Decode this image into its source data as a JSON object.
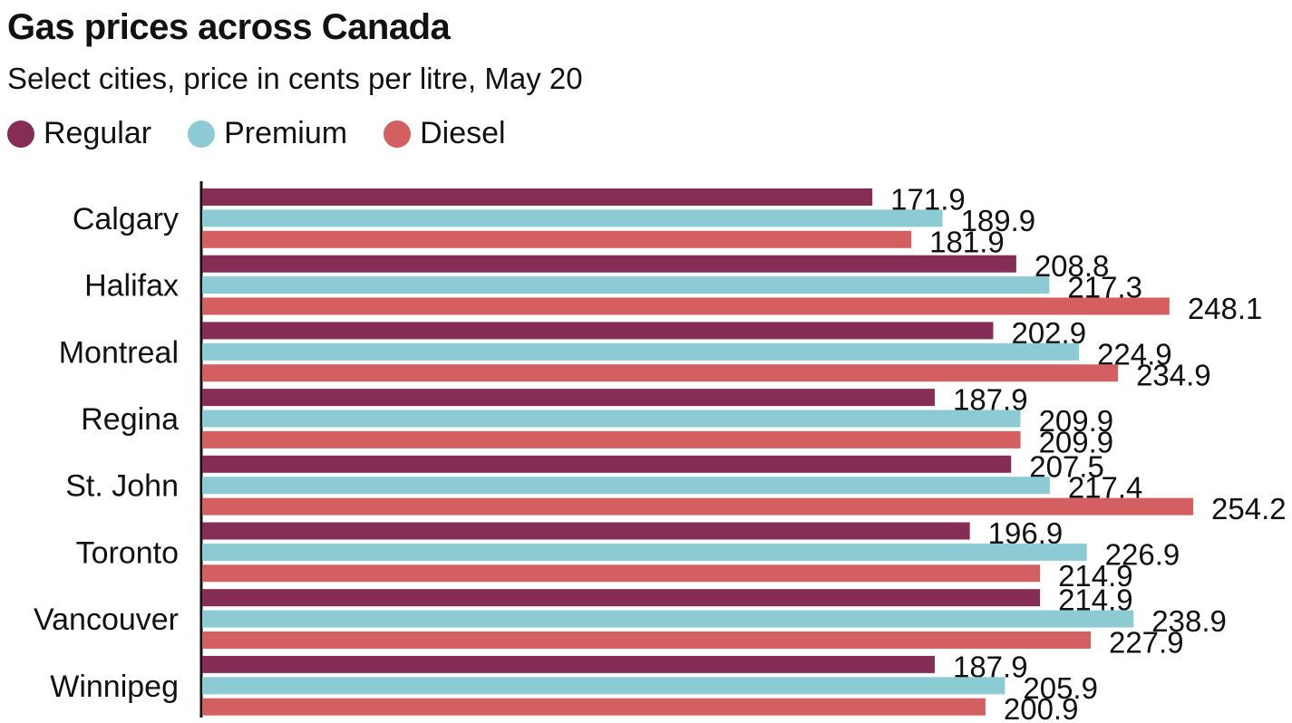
{
  "title": "Gas prices across Canada",
  "subtitle": "Select cities, price in cents per litre, May 20",
  "legend": [
    {
      "name": "Regular",
      "color": "#862d55"
    },
    {
      "name": "Premium",
      "color": "#8ccbd3"
    },
    {
      "name": "Diesel",
      "color": "#d45f60"
    }
  ],
  "chart_data": {
    "type": "bar",
    "orientation": "horizontal",
    "title": "Gas prices across Canada",
    "subtitle": "Select cities, price in cents per litre, May 20",
    "categories": [
      "Calgary",
      "Halifax",
      "Montreal",
      "Regina",
      "St. John",
      "Toronto",
      "Vancouver",
      "Winnipeg"
    ],
    "series": [
      {
        "name": "Regular",
        "color": "#862d55",
        "values": [
          171.9,
          208.8,
          202.9,
          187.9,
          207.5,
          196.9,
          214.9,
          187.9
        ]
      },
      {
        "name": "Premium",
        "color": "#8ccbd3",
        "values": [
          189.9,
          217.3,
          224.9,
          209.9,
          217.4,
          226.9,
          238.9,
          205.9
        ]
      },
      {
        "name": "Diesel",
        "color": "#d45f60",
        "values": [
          181.9,
          248.1,
          234.9,
          209.9,
          254.2,
          214.9,
          227.9,
          200.9
        ]
      }
    ],
    "xlim": [
      0,
      254.2
    ],
    "grid": false,
    "legend_position": "top-left"
  }
}
